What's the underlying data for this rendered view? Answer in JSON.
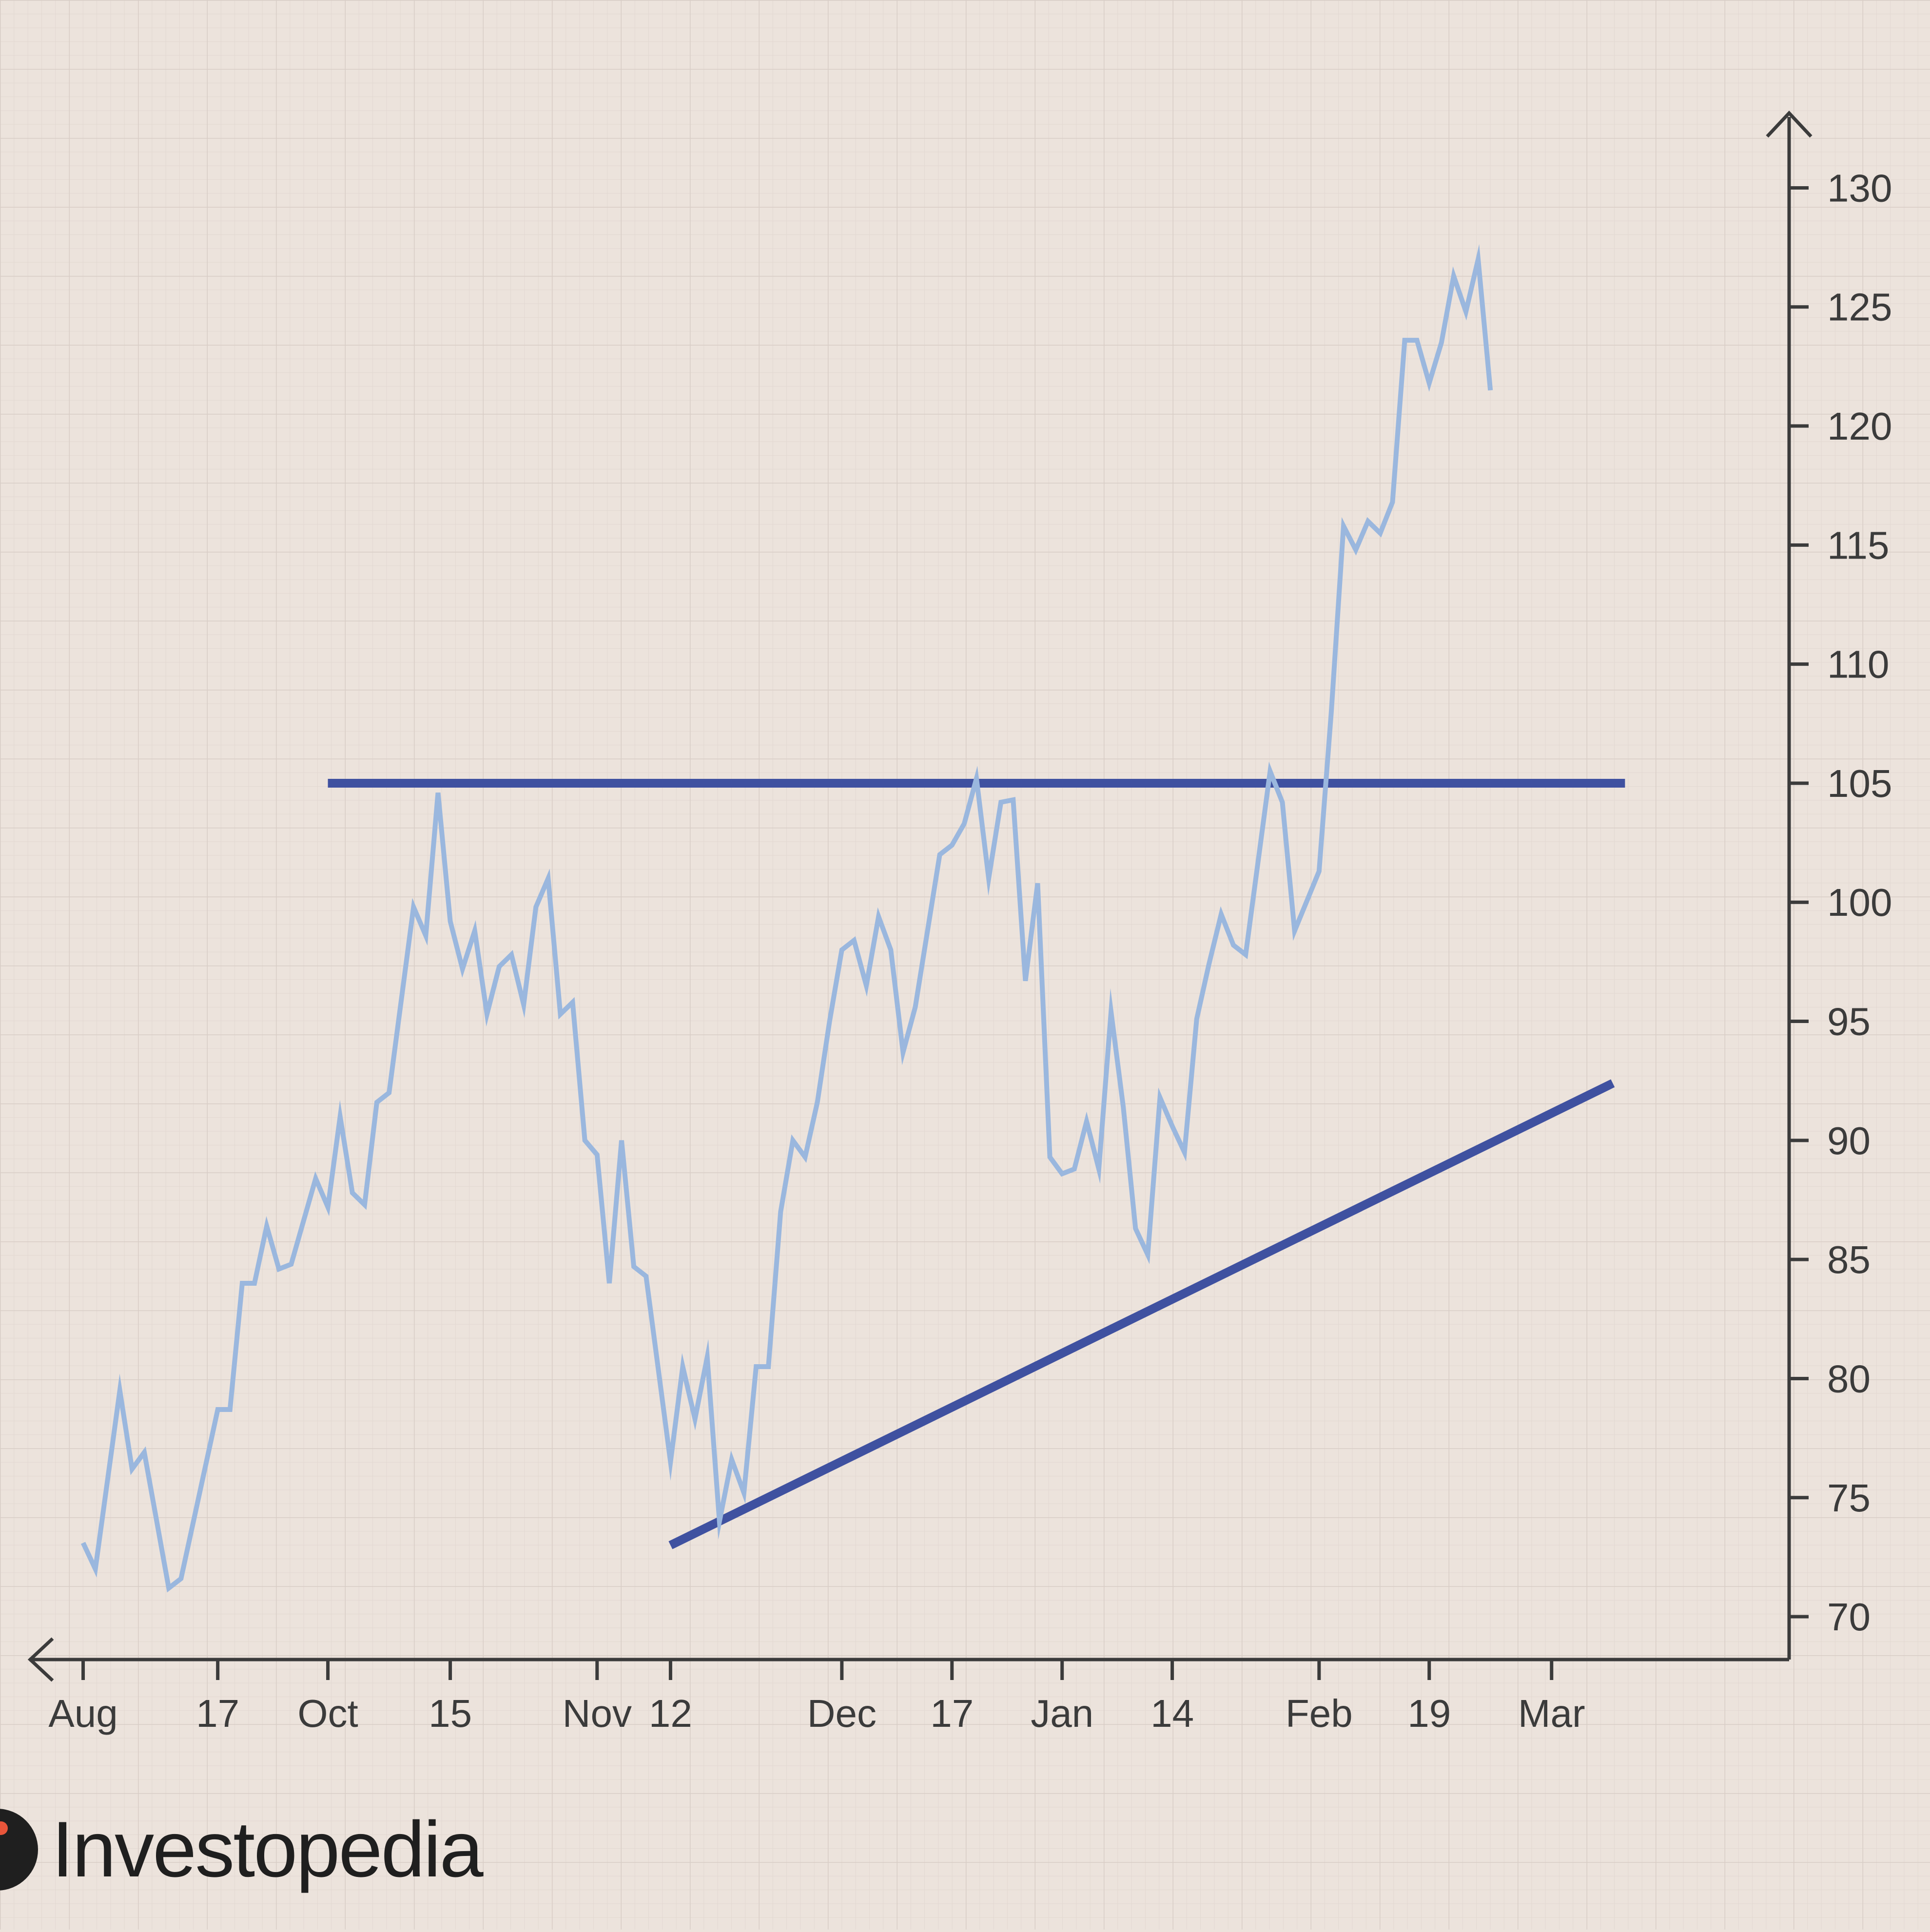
{
  "brand": {
    "name": "Investopedia"
  },
  "colors": {
    "background": "#ece3dc",
    "grid_minor": "#e2d8d1",
    "grid_major": "#d8cdc6",
    "axis": "#3b3b3b",
    "price": "#9ab7de",
    "trendline": "#3f51a0",
    "brand_text": "#1f1f1f",
    "brand_dot": "#e8553a"
  },
  "chart_data": {
    "type": "line",
    "title": "",
    "xlabel": "",
    "ylabel": "",
    "ylim": [
      68.2,
      134
    ],
    "xlim": [
      -5.2,
      142
    ],
    "y_axis_side": "right",
    "y_ticks": [
      70,
      75,
      80,
      85,
      90,
      95,
      100,
      105,
      110,
      115,
      120,
      125,
      130
    ],
    "x_ticks": [
      {
        "x": 0,
        "label": "Aug"
      },
      {
        "x": 11,
        "label": "17"
      },
      {
        "x": 20,
        "label": "Oct"
      },
      {
        "x": 30,
        "label": "15"
      },
      {
        "x": 42,
        "label": "Nov"
      },
      {
        "x": 48,
        "label": "12"
      },
      {
        "x": 62,
        "label": "Dec"
      },
      {
        "x": 71,
        "label": "17"
      },
      {
        "x": 80,
        "label": "Jan"
      },
      {
        "x": 89,
        "label": "14"
      },
      {
        "x": 101,
        "label": "Feb"
      },
      {
        "x": 110,
        "label": "19"
      },
      {
        "x": 120,
        "label": "Mar"
      }
    ],
    "series": [
      {
        "values": [
          [
            0,
            73.1
          ],
          [
            1,
            72.0
          ],
          [
            3,
            79.5
          ],
          [
            4,
            76.2
          ],
          [
            5,
            76.9
          ],
          [
            7,
            71.2
          ],
          [
            8,
            71.6
          ],
          [
            11,
            78.7
          ],
          [
            12,
            78.7
          ],
          [
            13,
            84.0
          ],
          [
            14,
            84.0
          ],
          [
            15,
            86.4
          ],
          [
            16,
            84.6
          ],
          [
            17,
            84.8
          ],
          [
            19,
            88.4
          ],
          [
            20,
            87.2
          ],
          [
            21,
            91.0
          ],
          [
            22,
            87.8
          ],
          [
            23,
            87.3
          ],
          [
            24,
            91.6
          ],
          [
            25,
            92.0
          ],
          [
            27,
            99.8
          ],
          [
            28,
            98.6
          ],
          [
            29,
            104.6
          ],
          [
            30,
            99.2
          ],
          [
            31,
            97.2
          ],
          [
            32,
            98.8
          ],
          [
            33,
            95.3
          ],
          [
            34,
            97.3
          ],
          [
            35,
            97.8
          ],
          [
            36,
            95.7
          ],
          [
            37,
            99.8
          ],
          [
            38,
            101.0
          ],
          [
            39,
            95.3
          ],
          [
            40,
            95.8
          ],
          [
            41,
            90.0
          ],
          [
            42,
            89.4
          ],
          [
            43,
            84.0
          ],
          [
            44,
            90.0
          ],
          [
            45,
            84.7
          ],
          [
            46,
            84.3
          ],
          [
            48,
            76.5
          ],
          [
            49,
            80.5
          ],
          [
            50,
            78.3
          ],
          [
            51,
            80.9
          ],
          [
            52,
            74.0
          ],
          [
            53,
            76.6
          ],
          [
            54,
            75.2
          ],
          [
            55,
            80.5
          ],
          [
            56,
            80.5
          ],
          [
            57,
            87.0
          ],
          [
            58,
            90.0
          ],
          [
            59,
            89.3
          ],
          [
            60,
            91.6
          ],
          [
            61,
            95.0
          ],
          [
            62,
            98.0
          ],
          [
            63,
            98.4
          ],
          [
            64,
            96.5
          ],
          [
            65,
            99.4
          ],
          [
            66,
            98.0
          ],
          [
            67,
            93.7
          ],
          [
            68,
            95.6
          ],
          [
            70,
            102.0
          ],
          [
            71,
            102.4
          ],
          [
            72,
            103.3
          ],
          [
            73,
            105.2
          ],
          [
            74,
            101.0
          ],
          [
            75,
            104.2
          ],
          [
            76,
            104.3
          ],
          [
            77,
            96.7
          ],
          [
            78,
            100.8
          ],
          [
            79,
            89.3
          ],
          [
            80,
            88.6
          ],
          [
            81,
            88.8
          ],
          [
            82,
            90.8
          ],
          [
            83,
            88.8
          ],
          [
            84,
            95.4
          ],
          [
            85,
            91.4
          ],
          [
            86,
            86.3
          ],
          [
            87,
            85.2
          ],
          [
            88,
            91.8
          ],
          [
            89,
            90.6
          ],
          [
            90,
            89.5
          ],
          [
            91,
            95.1
          ],
          [
            92,
            97.4
          ],
          [
            93,
            99.5
          ],
          [
            94,
            98.2
          ],
          [
            95,
            97.8
          ],
          [
            97,
            105.5
          ],
          [
            98,
            104.2
          ],
          [
            99,
            98.8
          ],
          [
            101,
            101.3
          ],
          [
            102,
            108.0
          ],
          [
            103,
            115.8
          ],
          [
            104,
            114.8
          ],
          [
            105,
            116.0
          ],
          [
            106,
            115.5
          ],
          [
            107,
            116.8
          ],
          [
            108,
            123.6
          ],
          [
            109,
            123.6
          ],
          [
            110,
            121.8
          ],
          [
            111,
            123.5
          ],
          [
            112,
            126.3
          ],
          [
            113,
            124.8
          ],
          [
            114,
            127.0
          ],
          [
            115,
            121.5
          ]
        ]
      }
    ],
    "annotations": [
      {
        "type": "resistance",
        "from": [
          20,
          105
        ],
        "to": [
          126,
          105
        ]
      },
      {
        "type": "support",
        "from": [
          48,
          73
        ],
        "to": [
          125,
          92.4
        ]
      }
    ]
  }
}
